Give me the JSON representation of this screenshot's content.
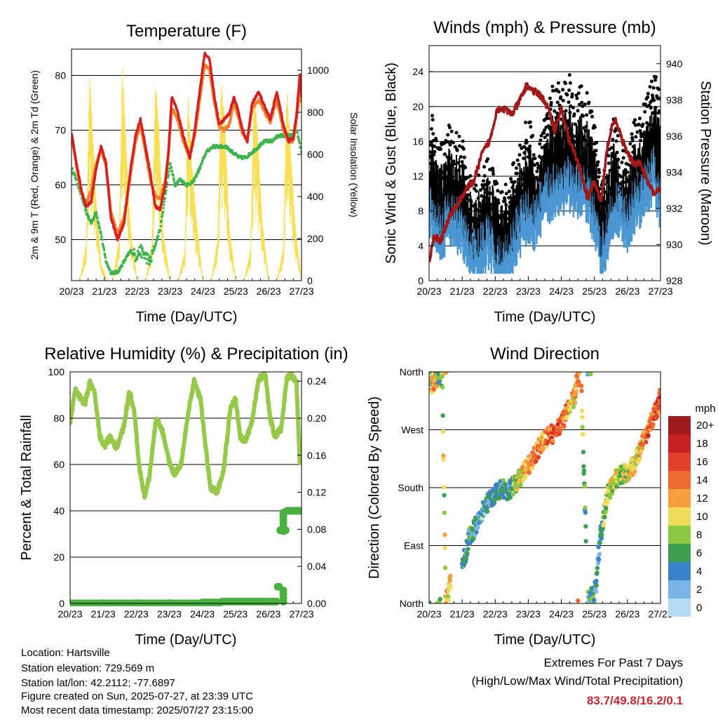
{
  "footer": {
    "location": "Location: Hartsville",
    "elevation": "Station elevation: 729.569 m",
    "latlon": "Station lat/lon: 42.2112; -77.6897",
    "created": "Figure created on Sun, 2025-07-27, at 23:39 UTC",
    "recent": "Most recent data timestamp: 2025/07/27 23:15:00"
  },
  "extremes": {
    "title": "Extremes For Past 7 Days",
    "subtitle": "(High/Low/Max Wind/Total Precipitation)",
    "values": "83.7/49.8/16.2/0.1",
    "color": "#c8282d"
  },
  "colors": {
    "temp_2m": "#d42020",
    "temp_9m": "#f08030",
    "dewpoint": "#3cb44b",
    "solar": "#f7df5a",
    "wind": "#4a96d2",
    "gust": "#000000",
    "pressure": "#a01818",
    "rh": "#96c84a",
    "precip": "#4ab040"
  },
  "chart_data": [
    {
      "id": "temperature",
      "type": "line",
      "title": "Temperature (F)",
      "xlabel": "Time (Day/UTC)",
      "ylabel": "2m & 9m T (Red, Orange) & 2m Td (Green)",
      "y2label": "Solar Insolation (Yellow)",
      "xticks": [
        "20/23",
        "21/23",
        "22/23",
        "23/23",
        "24/23",
        "25/23",
        "26/23",
        "27/23"
      ],
      "xlim": [
        0,
        7
      ],
      "ylim": [
        42.5,
        84.8
      ],
      "yticks": [
        50,
        60,
        70,
        80
      ],
      "y2lim": [
        0,
        1100
      ],
      "y2ticks": [
        0,
        200,
        400,
        600,
        800,
        1000
      ],
      "grid": "horizontal at major y ticks",
      "series": [
        {
          "key": "temp_2m",
          "x": [
            0,
            0.15,
            0.3,
            0.45,
            0.6,
            0.75,
            0.9,
            1.05,
            1.2,
            1.4,
            1.6,
            1.8,
            1.95,
            2.1,
            2.25,
            2.4,
            2.55,
            2.7,
            2.85,
            2.95,
            3.05,
            3.2,
            3.4,
            3.6,
            3.75,
            3.9,
            4.05,
            4.2,
            4.35,
            4.5,
            4.65,
            4.8,
            4.95,
            5.05,
            5.2,
            5.35,
            5.5,
            5.7,
            5.9,
            6.05,
            6.25,
            6.45,
            6.6,
            6.75,
            6.85,
            6.95,
            7
          ],
          "values": [
            69.5,
            64,
            59,
            56,
            57,
            63,
            67,
            64,
            54,
            50,
            53,
            63,
            69,
            72,
            67,
            62,
            56,
            55.5,
            60,
            66,
            76,
            74,
            69,
            65,
            70,
            77,
            84,
            83,
            76,
            71,
            72,
            73,
            76,
            74,
            70,
            68,
            75,
            77,
            74,
            72,
            77,
            71,
            68,
            68.5,
            73,
            80,
            76
          ]
        },
        {
          "key": "temp_9m",
          "x": [
            0,
            0.15,
            0.3,
            0.45,
            0.6,
            0.75,
            0.9,
            1.05,
            1.2,
            1.4,
            1.6,
            1.8,
            1.95,
            2.1,
            2.25,
            2.4,
            2.55,
            2.7,
            2.85,
            2.95,
            3.05,
            3.2,
            3.4,
            3.6,
            3.75,
            3.9,
            4.05,
            4.2,
            4.35,
            4.5,
            4.65,
            4.8,
            4.95,
            5.05,
            5.2,
            5.35,
            5.5,
            5.7,
            5.9,
            6.05,
            6.25,
            6.45,
            6.6,
            6.75,
            6.85,
            6.95,
            7
          ],
          "values": [
            69,
            63.5,
            58.5,
            56.5,
            59,
            64,
            66.5,
            63.5,
            55,
            51,
            54,
            62,
            68,
            71,
            66,
            61,
            58,
            57.5,
            60.5,
            65.5,
            74,
            72.5,
            68,
            65,
            69,
            75.5,
            82,
            81,
            75,
            70.5,
            70,
            71,
            75,
            73,
            69.5,
            68,
            74,
            75.5,
            73,
            71.5,
            75.5,
            70,
            68,
            68,
            72,
            77,
            75
          ]
        },
        {
          "key": "dewpoint",
          "x": [
            0,
            0.15,
            0.3,
            0.45,
            0.6,
            0.75,
            0.9,
            1.05,
            1.2,
            1.4,
            1.6,
            1.8,
            1.95,
            2.1,
            2.25,
            2.4,
            2.55,
            2.7,
            2.85,
            3.0,
            3.15,
            3.3,
            3.5,
            3.7,
            3.9,
            4.1,
            4.3,
            4.5,
            4.7,
            4.9,
            5.1,
            5.3,
            5.5,
            5.7,
            5.9,
            6.1,
            6.3,
            6.5,
            6.7,
            6.85,
            7
          ],
          "values": [
            63,
            61,
            58,
            55,
            53,
            55,
            51,
            46,
            44,
            44,
            46,
            48,
            47,
            48,
            47,
            46,
            49,
            52,
            58,
            64,
            60,
            61,
            60,
            60.5,
            63,
            66,
            67,
            67,
            67,
            66,
            65,
            65,
            66,
            67,
            68,
            68,
            69,
            69,
            69,
            70,
            66
          ]
        },
        {
          "key": "solar",
          "axis": "y2",
          "x": [
            0,
            0.25,
            0.45,
            0.55,
            0.6,
            0.75,
            0.9,
            1.1,
            1.25,
            1.45,
            1.55,
            1.65,
            1.8,
            2.0,
            2.25,
            2.45,
            2.55,
            2.65,
            2.8,
            3.0,
            3.25,
            3.45,
            3.55,
            3.65,
            3.8,
            4.0,
            4.25,
            4.45,
            4.55,
            4.65,
            4.8,
            5.0,
            5.25,
            5.45,
            5.55,
            5.65,
            5.8,
            6.0,
            6.25,
            6.45,
            6.55,
            6.65,
            6.8,
            7
          ],
          "values": [
            0,
            0,
            180,
            1000,
            850,
            400,
            80,
            0,
            0,
            200,
            1050,
            700,
            250,
            0,
            0,
            180,
            950,
            780,
            220,
            0,
            0,
            150,
            900,
            600,
            300,
            0,
            0,
            200,
            950,
            820,
            260,
            0,
            0,
            150,
            900,
            760,
            300,
            0,
            0,
            160,
            920,
            700,
            280,
            0
          ]
        }
      ]
    },
    {
      "id": "winds",
      "type": "scatter",
      "title": "Winds (mph) & Pressure (mb)",
      "xlabel": "Time (Day/UTC)",
      "ylabel": "Sonic Wind & Gust (Blue, Black)",
      "y2label": "Station Pressure (Maroon)",
      "xticks": [
        "20/23",
        "21/23",
        "22/23",
        "23/23",
        "24/23",
        "25/23",
        "26/23",
        "27/23"
      ],
      "xlim": [
        0,
        7
      ],
      "ylim": [
        0,
        27
      ],
      "yticks": [
        0,
        4,
        8,
        12,
        16,
        20,
        24
      ],
      "y2lim": [
        928,
        941
      ],
      "y2ticks": [
        928,
        930,
        932,
        934,
        936,
        938,
        940
      ],
      "grid": "horizontal at major y ticks",
      "series": [
        {
          "key": "gust",
          "x": [
            0,
            0.2,
            0.4,
            0.6,
            0.8,
            1.0,
            1.2,
            1.4,
            1.6,
            1.8,
            2.0,
            2.2,
            2.4,
            2.6,
            2.8,
            3.0,
            3.2,
            3.4,
            3.6,
            3.8,
            4.0,
            4.2,
            4.4,
            4.6,
            4.8,
            5.0,
            5.2,
            5.4,
            5.6,
            5.8,
            6.0,
            6.2,
            6.4,
            6.6,
            6.8,
            7
          ],
          "values": [
            17,
            14,
            12,
            15,
            14,
            13,
            9,
            8,
            10,
            11,
            9,
            7,
            8,
            11,
            13,
            16,
            12,
            15,
            17,
            20,
            19,
            21,
            18,
            19,
            18,
            15,
            8,
            12,
            16,
            13,
            11,
            15,
            16,
            18,
            21,
            18
          ]
        },
        {
          "key": "wind",
          "x": [
            0,
            0.2,
            0.4,
            0.6,
            0.8,
            1.0,
            1.2,
            1.4,
            1.6,
            1.8,
            2.0,
            2.2,
            2.4,
            2.6,
            2.8,
            3.0,
            3.2,
            3.4,
            3.6,
            3.8,
            4.0,
            4.2,
            4.4,
            4.6,
            4.8,
            5.0,
            5.2,
            5.4,
            5.6,
            5.8,
            6.0,
            6.2,
            6.4,
            6.6,
            6.8,
            7
          ],
          "values": [
            10,
            8,
            7,
            9,
            8,
            7,
            5,
            4,
            5,
            6,
            4,
            3,
            4,
            6,
            8,
            9,
            8,
            10,
            11,
            12,
            12,
            13,
            11,
            12,
            11,
            9,
            4,
            7,
            10,
            9,
            8,
            10,
            11,
            12,
            14,
            10
          ]
        },
        {
          "key": "pressure",
          "type": "line",
          "axis": "y2",
          "x": [
            0,
            0.15,
            0.35,
            0.6,
            0.85,
            1.1,
            1.35,
            1.6,
            1.85,
            2.05,
            2.25,
            2.5,
            2.7,
            2.95,
            3.15,
            3.4,
            3.6,
            3.8,
            4.0,
            4.2,
            4.4,
            4.6,
            4.8,
            5.0,
            5.2,
            5.4,
            5.6,
            5.8,
            6.0,
            6.2,
            6.4,
            6.6,
            6.8,
            7
          ],
          "values": [
            929,
            930.5,
            930.2,
            931.5,
            932.2,
            933,
            933.5,
            935,
            935.8,
            937.5,
            937.5,
            937.2,
            937.8,
            938.8,
            938.5,
            938.2,
            937.5,
            936.3,
            937.5,
            936,
            935,
            934,
            932.5,
            933.5,
            932.3,
            935.5,
            937,
            936,
            935,
            934.5,
            934.5,
            933.5,
            932.8,
            933
          ]
        }
      ]
    },
    {
      "id": "humidity",
      "type": "line",
      "title": "Relative Humidity (%) & Precipitation (in)",
      "xlabel": "Time (Day/UTC)",
      "ylabel": "Percent & Total Rainfall",
      "xticks": [
        "20/23",
        "21/23",
        "22/23",
        "23/23",
        "24/23",
        "25/23",
        "26/23",
        "27/23"
      ],
      "xlim": [
        0,
        7
      ],
      "ylim": [
        0,
        100
      ],
      "yticks": [
        0,
        20,
        40,
        60,
        80,
        100
      ],
      "y2lim": [
        0,
        0.25
      ],
      "y2ticks": [
        "0.00",
        "0.04",
        "0.08",
        "0.12",
        "0.16",
        "0.20",
        "0.24"
      ],
      "grid": "horizontal at major y ticks",
      "series": [
        {
          "key": "rh",
          "x": [
            0,
            0.15,
            0.3,
            0.45,
            0.6,
            0.75,
            0.9,
            1.05,
            1.2,
            1.4,
            1.6,
            1.8,
            1.95,
            2.1,
            2.25,
            2.4,
            2.6,
            2.8,
            3.0,
            3.15,
            3.35,
            3.55,
            3.75,
            3.95,
            4.1,
            4.25,
            4.45,
            4.65,
            4.85,
            5.0,
            5.15,
            5.3,
            5.5,
            5.7,
            5.9,
            6.05,
            6.2,
            6.4,
            6.55,
            6.7,
            6.85,
            6.95,
            7
          ],
          "values": [
            78,
            92,
            89,
            86,
            96,
            90,
            72,
            68,
            72,
            67,
            75,
            92,
            82,
            58,
            46,
            55,
            80,
            74,
            61,
            56,
            60,
            80,
            96,
            88,
            67,
            50,
            48,
            58,
            85,
            88,
            72,
            70,
            78,
            97,
            99,
            80,
            72,
            76,
            97,
            99,
            95,
            60,
            72
          ]
        },
        {
          "key": "precip",
          "axis": "y2",
          "x": [
            0,
            1,
            2,
            3,
            4,
            4.6,
            5,
            5.5,
            6,
            6.25,
            6.35,
            6.45,
            6.55,
            6.65,
            6.8,
            7
          ],
          "values": [
            0,
            0,
            0,
            0,
            0,
            0.001,
            0.002,
            0.002,
            0.002,
            0.002,
            0.018,
            0.079,
            0.079,
            0.1,
            0.1,
            0.1
          ]
        }
      ]
    },
    {
      "id": "wind_direction",
      "type": "scatter",
      "title": "Wind Direction",
      "xlabel": "Time (Day/UTC)",
      "ylabel": "Direction (Colored By Speed)",
      "xticks": [
        "20/23",
        "21/23",
        "22/23",
        "23/23",
        "24/23",
        "25/23",
        "26/23",
        "27/23"
      ],
      "xlim": [
        0,
        7
      ],
      "ylim": [
        0,
        360
      ],
      "yticks": [
        "North",
        "East",
        "South",
        "West",
        "North"
      ],
      "grid": "horizontal at major y ticks",
      "colorbar": {
        "title": "mph",
        "labels": [
          "20+",
          "18",
          "16",
          "14",
          "12",
          "10",
          "8",
          "6",
          "4",
          "2",
          "0"
        ],
        "colors": [
          "#a01c1c",
          "#c82020",
          "#e0402a",
          "#f06a30",
          "#f5a03c",
          "#f0dc5a",
          "#8cc840",
          "#3ca050",
          "#3a82c8",
          "#78b4e6",
          "#b4dcf5"
        ]
      },
      "series": [
        {
          "key": "direction",
          "x": [
            0,
            0.1,
            0.2,
            0.3,
            0.4,
            0.5,
            0.6,
            0.65,
            1.0,
            1.1,
            1.2,
            1.4,
            1.6,
            1.8,
            2.0,
            2.2,
            2.4,
            2.6,
            2.8,
            3.0,
            3.2,
            3.4,
            3.6,
            3.8,
            4.0,
            4.2,
            4.4,
            4.5,
            4.6,
            4.8,
            5.0,
            5.05,
            5.1,
            5.2,
            5.4,
            5.6,
            5.8,
            6.0,
            6.2,
            6.4,
            6.6,
            6.8,
            7
          ],
          "speed": [
            8,
            10,
            12,
            6,
            8,
            10,
            12,
            8,
            5,
            6,
            4,
            5,
            3,
            4,
            6,
            5,
            4,
            8,
            10,
            12,
            14,
            12,
            14,
            16,
            14,
            12,
            10,
            14,
            12,
            4,
            6,
            4,
            3,
            6,
            8,
            10,
            8,
            9,
            10,
            12,
            14,
            16,
            14
          ],
          "values": [
            355,
            340,
            345,
            355,
            350,
            10,
            20,
            35,
            60,
            75,
            100,
            120,
            140,
            160,
            170,
            180,
            175,
            185,
            200,
            215,
            230,
            250,
            260,
            265,
            280,
            300,
            320,
            355,
            345,
            5,
            15,
            30,
            60,
            110,
            170,
            190,
            200,
            205,
            215,
            240,
            270,
            290,
            320
          ]
        }
      ]
    }
  ]
}
